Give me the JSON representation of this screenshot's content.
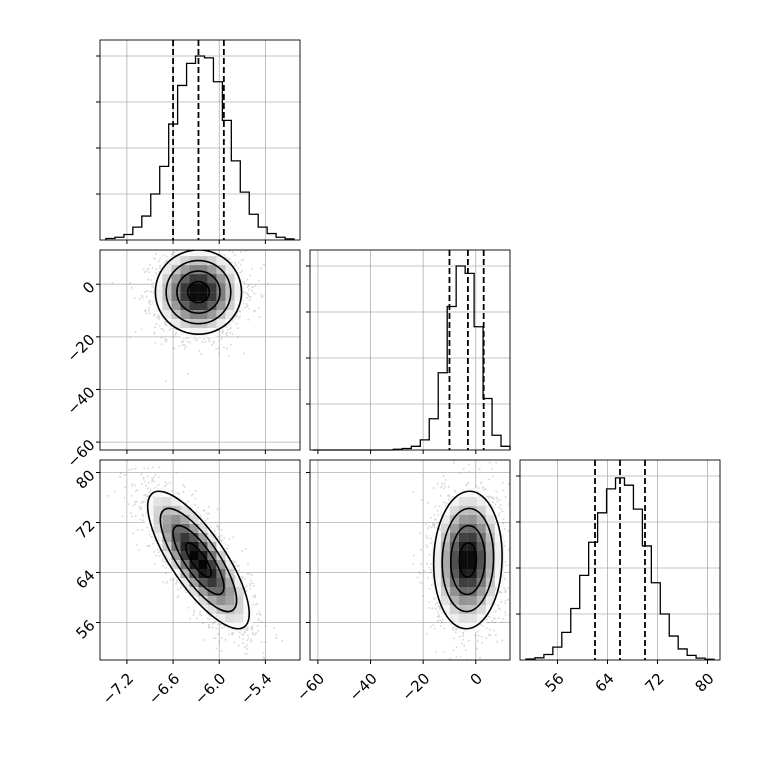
{
  "chart_data": {
    "type": "corner",
    "title": "",
    "grid": true,
    "params": [
      {
        "range": [
          -7.55,
          -4.95
        ],
        "ticks": [
          -7.2,
          -6.6,
          -6.0,
          -5.4
        ],
        "tick_labels": [
          "−7.2",
          "−6.6",
          "−6.0",
          "−5.4"
        ],
        "quantiles": [
          -6.6,
          -6.27,
          -5.94
        ],
        "hist": [
          0.008,
          0.015,
          0.03,
          0.07,
          0.13,
          0.25,
          0.4,
          0.63,
          0.84,
          0.96,
          1.0,
          0.99,
          0.86,
          0.65,
          0.43,
          0.26,
          0.14,
          0.07,
          0.035,
          0.015,
          0.006
        ]
      },
      {
        "range": [
          -63,
          13
        ],
        "ticks": [
          -60,
          -40,
          -20,
          0
        ],
        "tick_labels": [
          "−60",
          "−40",
          "−20",
          "0"
        ],
        "quantiles": [
          -10,
          -3,
          3
        ],
        "hist": [
          0,
          0,
          0,
          0,
          0,
          0,
          0,
          0,
          0,
          0.004,
          0.008,
          0.02,
          0.055,
          0.17,
          0.42,
          0.78,
          1.0,
          0.96,
          0.67,
          0.28,
          0.08,
          0.02
        ]
      },
      {
        "range": [
          50,
          82
        ],
        "ticks": [
          56,
          64,
          72,
          80
        ],
        "tick_labels": [
          "56",
          "64",
          "72",
          "80"
        ],
        "quantiles": [
          62,
          66,
          70
        ],
        "hist": [
          0.005,
          0.012,
          0.03,
          0.07,
          0.15,
          0.28,
          0.46,
          0.64,
          0.8,
          0.93,
          0.99,
          0.95,
          0.82,
          0.62,
          0.42,
          0.25,
          0.13,
          0.06,
          0.025,
          0.01,
          0.004
        ]
      }
    ],
    "pairs": [
      {
        "row": 1,
        "col": 0,
        "mean": [
          -6.27,
          -3
        ],
        "sd": [
          0.28,
          8
        ],
        "rho": 0.0
      },
      {
        "row": 2,
        "col": 0,
        "mean": [
          -6.27,
          66
        ],
        "sd": [
          0.33,
          5.5
        ],
        "rho": -0.78
      },
      {
        "row": 2,
        "col": 1,
        "mean": [
          -3,
          66
        ],
        "sd": [
          6.5,
          5.5
        ],
        "rho": 0.05
      }
    ]
  }
}
